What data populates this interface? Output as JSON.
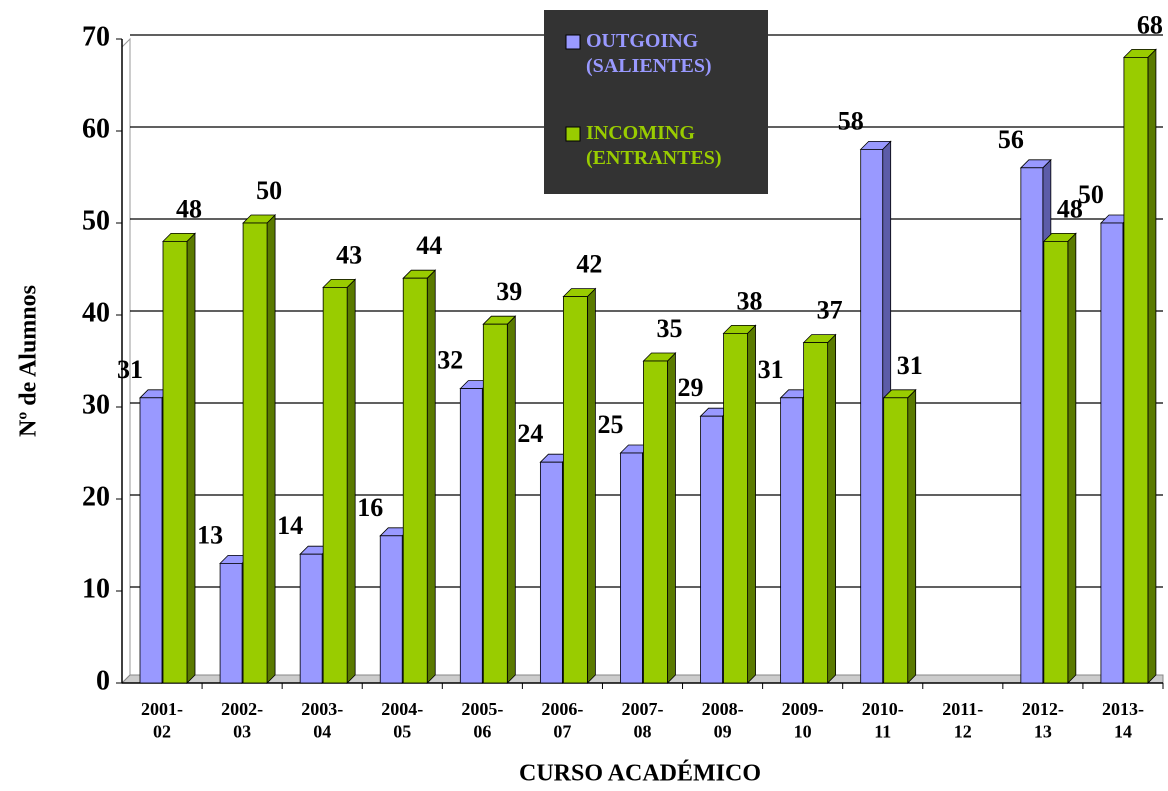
{
  "chart_data": {
    "type": "bar",
    "categories": [
      "2001-02",
      "2002-03",
      "2003-04",
      "2004-05",
      "2005-06",
      "2006-07",
      "2007-08",
      "2008-09",
      "2009-10",
      "2010-11",
      "2011-12",
      "2012-13",
      "2013-14"
    ],
    "series": [
      {
        "name": "OUTGOING (SALIENTES)",
        "color": "#9999ff",
        "values": [
          31,
          13,
          14,
          16,
          32,
          24,
          25,
          29,
          31,
          58,
          null,
          56,
          50
        ]
      },
      {
        "name": "INCOMING (ENTRANTES)",
        "color": "#99cc00",
        "values": [
          48,
          50,
          43,
          44,
          39,
          42,
          35,
          38,
          37,
          31,
          null,
          48,
          68
        ]
      }
    ],
    "ylim": [
      0,
      70
    ],
    "yticks": [
      0,
      10,
      20,
      30,
      40,
      50,
      60,
      70
    ],
    "grid": true,
    "y_label": "Nº de Alumnos",
    "x_label": "CURSO ACADÉMICO",
    "legend": "top"
  }
}
